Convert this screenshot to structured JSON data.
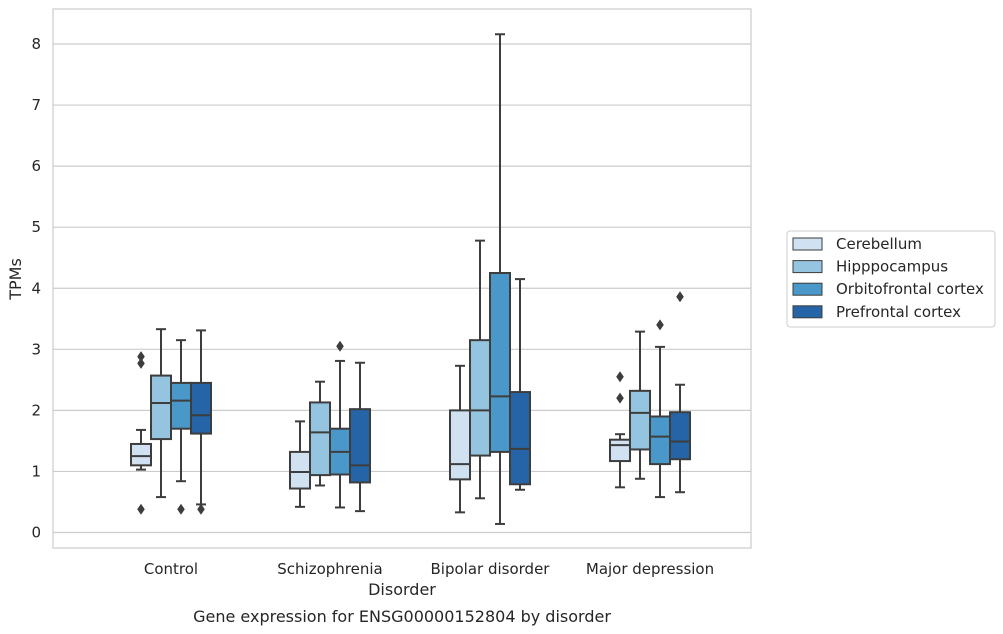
{
  "chart_data": {
    "type": "box",
    "caption": "Gene expression for ENSG00000152804 by disorder",
    "xlabel": "Disorder",
    "ylabel": "TPMs",
    "ylim": [
      -0.25,
      8.55
    ],
    "yticks": [
      0,
      1,
      2,
      3,
      4,
      5,
      6,
      7,
      8
    ],
    "grid": true,
    "legend_position": "right",
    "categories": [
      "Control",
      "Schizophrenia",
      "Bipolar disorder",
      "Major depression"
    ],
    "series": [
      {
        "name": "Cerebellum",
        "color": "#d0e1f2",
        "boxes": [
          {
            "whisker_low": 1.03,
            "q1": 1.1,
            "median": 1.25,
            "q3": 1.45,
            "whisker_high": 1.68,
            "outliers": [
              0.38,
              2.77,
              2.88
            ]
          },
          {
            "whisker_low": 0.42,
            "q1": 0.72,
            "median": 0.99,
            "q3": 1.32,
            "whisker_high": 1.82,
            "outliers": []
          },
          {
            "whisker_low": 0.33,
            "q1": 0.87,
            "median": 1.12,
            "q3": 2.0,
            "whisker_high": 2.73,
            "outliers": []
          },
          {
            "whisker_low": 0.74,
            "q1": 1.17,
            "median": 1.43,
            "q3": 1.52,
            "whisker_high": 1.61,
            "outliers": [
              2.2,
              2.55
            ]
          }
        ]
      },
      {
        "name": "Hipppocampus",
        "color": "#94c4df",
        "boxes": [
          {
            "whisker_low": 0.58,
            "q1": 1.53,
            "median": 2.12,
            "q3": 2.57,
            "whisker_high": 3.33,
            "outliers": []
          },
          {
            "whisker_low": 0.77,
            "q1": 0.94,
            "median": 1.64,
            "q3": 2.13,
            "whisker_high": 2.47,
            "outliers": []
          },
          {
            "whisker_low": 0.56,
            "q1": 1.26,
            "median": 2.0,
            "q3": 3.15,
            "whisker_high": 4.78,
            "outliers": []
          },
          {
            "whisker_low": 0.88,
            "q1": 1.36,
            "median": 1.96,
            "q3": 2.32,
            "whisker_high": 3.29,
            "outliers": []
          }
        ]
      },
      {
        "name": "Orbitofrontal cortex",
        "color": "#4a98c9",
        "boxes": [
          {
            "whisker_low": 0.84,
            "q1": 1.7,
            "median": 2.16,
            "q3": 2.45,
            "whisker_high": 3.15,
            "outliers": [
              0.38
            ]
          },
          {
            "whisker_low": 0.41,
            "q1": 0.95,
            "median": 1.32,
            "q3": 1.7,
            "whisker_high": 2.81,
            "outliers": [
              3.05
            ]
          },
          {
            "whisker_low": 0.14,
            "q1": 1.32,
            "median": 2.23,
            "q3": 4.25,
            "whisker_high": 8.16,
            "outliers": []
          },
          {
            "whisker_low": 0.58,
            "q1": 1.12,
            "median": 1.57,
            "q3": 1.9,
            "whisker_high": 3.04,
            "outliers": [
              3.4
            ]
          }
        ]
      },
      {
        "name": "Prefrontal cortex",
        "color": "#2565a7",
        "boxes": [
          {
            "whisker_low": 0.46,
            "q1": 1.62,
            "median": 1.92,
            "q3": 2.45,
            "whisker_high": 3.31,
            "outliers": [
              0.38
            ]
          },
          {
            "whisker_low": 0.35,
            "q1": 0.82,
            "median": 1.1,
            "q3": 2.02,
            "whisker_high": 2.78,
            "outliers": []
          },
          {
            "whisker_low": 0.7,
            "q1": 0.79,
            "median": 1.37,
            "q3": 2.3,
            "whisker_high": 4.15,
            "outliers": []
          },
          {
            "whisker_low": 0.66,
            "q1": 1.2,
            "median": 1.49,
            "q3": 1.97,
            "whisker_high": 2.42,
            "outliers": [
              3.86
            ]
          }
        ]
      }
    ]
  }
}
